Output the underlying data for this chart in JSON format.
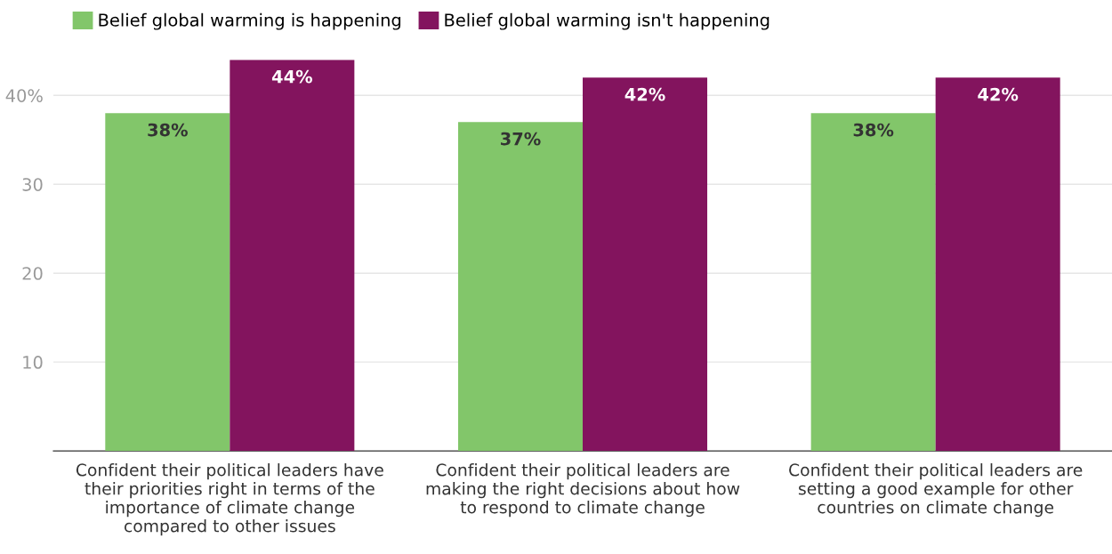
{
  "chart_data": {
    "type": "bar",
    "categories": [
      "Confident their political leaders have\ntheir priorities right in terms of the\nimportance of climate change\ncompared to other issues",
      "Confident their political leaders are\nmaking the right decisions about how\nto respond to climate change",
      "Confident their political leaders are\nsetting a good example for other\ncountries on climate change"
    ],
    "series": [
      {
        "name": "Belief global warming is happening",
        "color": "#82c66a",
        "values": [
          38,
          37,
          38
        ],
        "value_labels": [
          "38%",
          "37%",
          "38%"
        ]
      },
      {
        "name": "Belief global warming isn't happening",
        "color": "#83145e",
        "values": [
          44,
          42,
          42
        ],
        "value_labels": [
          "44%",
          "42%",
          "42%"
        ]
      }
    ],
    "ylim": [
      0,
      44
    ],
    "yticks": [
      10,
      20,
      30,
      {
        "value": 40,
        "label": "40%"
      }
    ],
    "grid": "y",
    "legend": "top left"
  }
}
